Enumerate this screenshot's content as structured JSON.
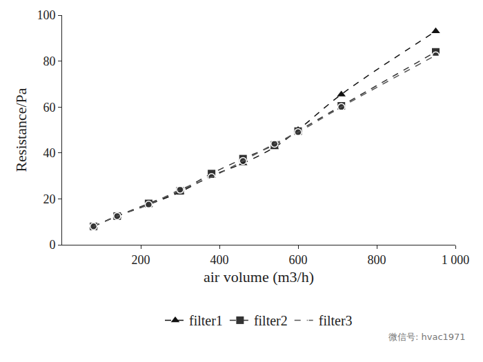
{
  "chart_data": {
    "type": "line",
    "x_label": "air volume (m3/h)",
    "y_label": "Resistance/Pa",
    "x": [
      80,
      140,
      220,
      300,
      380,
      460,
      540,
      600,
      710,
      950
    ],
    "series": [
      {
        "name": "filter1",
        "color": "#111111",
        "marker": "triangle-up",
        "line_style": "dash",
        "values": [
          8,
          12.5,
          17.5,
          23,
          30,
          35.5,
          42.5,
          50,
          65.5,
          93
        ]
      },
      {
        "name": "filter2",
        "color": "#333333",
        "marker": "square",
        "line_style": "dash",
        "values": [
          8,
          12.5,
          18,
          23.5,
          31,
          37.5,
          43.5,
          49.5,
          60.5,
          84
        ]
      },
      {
        "name": "filter3",
        "color": "#555555",
        "marker": "circle-open",
        "line_style": "dash",
        "values": [
          8,
          12.5,
          17.5,
          24,
          29.5,
          36.5,
          44,
          49,
          60,
          82.5
        ]
      }
    ],
    "xlim": [
      0,
      1000
    ],
    "xticks": [
      200,
      400,
      600,
      800,
      {
        "value": 1000,
        "label": "1 000"
      }
    ],
    "ylim": [
      0,
      100
    ],
    "yticks": [
      0,
      20,
      40,
      60,
      80,
      100
    ],
    "grid": false,
    "legend": "bottom",
    "annotations": [
      "微信号: hvac1971"
    ]
  }
}
